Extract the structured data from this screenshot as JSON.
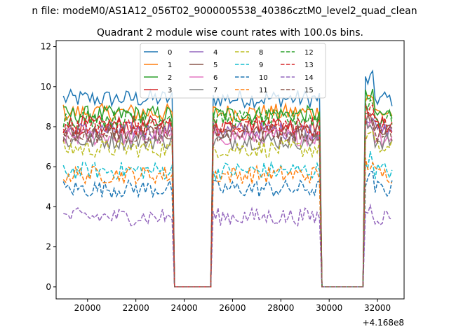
{
  "suptitle": "n file: modeM0/AS1A12_056T02_9000005538_40386cztM0_level2_quad_clean",
  "chart_data": {
    "type": "line",
    "title": "Quadrant 2 module wise count rates with 100.0s bins.",
    "offset_text": "+4.168e8",
    "xlim": [
      18700,
      33100
    ],
    "ylim": [
      -0.6,
      12.3
    ],
    "xticks": [
      20000,
      22000,
      24000,
      26000,
      28000,
      30000,
      32000
    ],
    "xtick_labels": [
      "20000",
      "22000",
      "24000",
      "26000",
      "28000",
      "30000",
      "32000"
    ],
    "yticks": [
      0,
      2,
      4,
      6,
      8,
      10,
      12
    ],
    "ytick_labels": [
      "0",
      "2",
      "4",
      "6",
      "8",
      "10",
      "12"
    ],
    "grid": false,
    "legend_placement": "top-center",
    "gaps": [
      [
        23550,
        25100
      ],
      [
        29700,
        31400
      ]
    ],
    "x_start": 19000,
    "x_end": 32600,
    "x_step": 100,
    "series": [
      {
        "name": "0",
        "color": "#1f77b4",
        "dash": "solid",
        "level": 9.4
      },
      {
        "name": "1",
        "color": "#ff7f0e",
        "dash": "solid",
        "level": 8.7
      },
      {
        "name": "2",
        "color": "#2ca02c",
        "dash": "solid",
        "level": 8.6
      },
      {
        "name": "3",
        "color": "#d62728",
        "dash": "solid",
        "level": 8.1
      },
      {
        "name": "4",
        "color": "#9467bd",
        "dash": "solid",
        "level": 7.8
      },
      {
        "name": "5",
        "color": "#8c564b",
        "dash": "solid",
        "level": 7.7
      },
      {
        "name": "6",
        "color": "#e377c2",
        "dash": "solid",
        "level": 7.5
      },
      {
        "name": "7",
        "color": "#7f7f7f",
        "dash": "solid",
        "level": 7.3
      },
      {
        "name": "8",
        "color": "#bcbd22",
        "dash": "dashed",
        "level": 6.9
      },
      {
        "name": "9",
        "color": "#17becf",
        "dash": "dashed",
        "level": 5.8
      },
      {
        "name": "10",
        "color": "#1f77b4",
        "dash": "dashed",
        "level": 4.9
      },
      {
        "name": "11",
        "color": "#ff7f0e",
        "dash": "dashed",
        "level": 5.6
      },
      {
        "name": "12",
        "color": "#2ca02c",
        "dash": "dashed",
        "level": 8.4
      },
      {
        "name": "13",
        "color": "#d62728",
        "dash": "dashed",
        "level": 8.0
      },
      {
        "name": "14",
        "color": "#9467bd",
        "dash": "dashed",
        "level": 3.5
      },
      {
        "name": "15",
        "color": "#8c564b",
        "dash": "dashed",
        "level": 7.6
      }
    ]
  }
}
